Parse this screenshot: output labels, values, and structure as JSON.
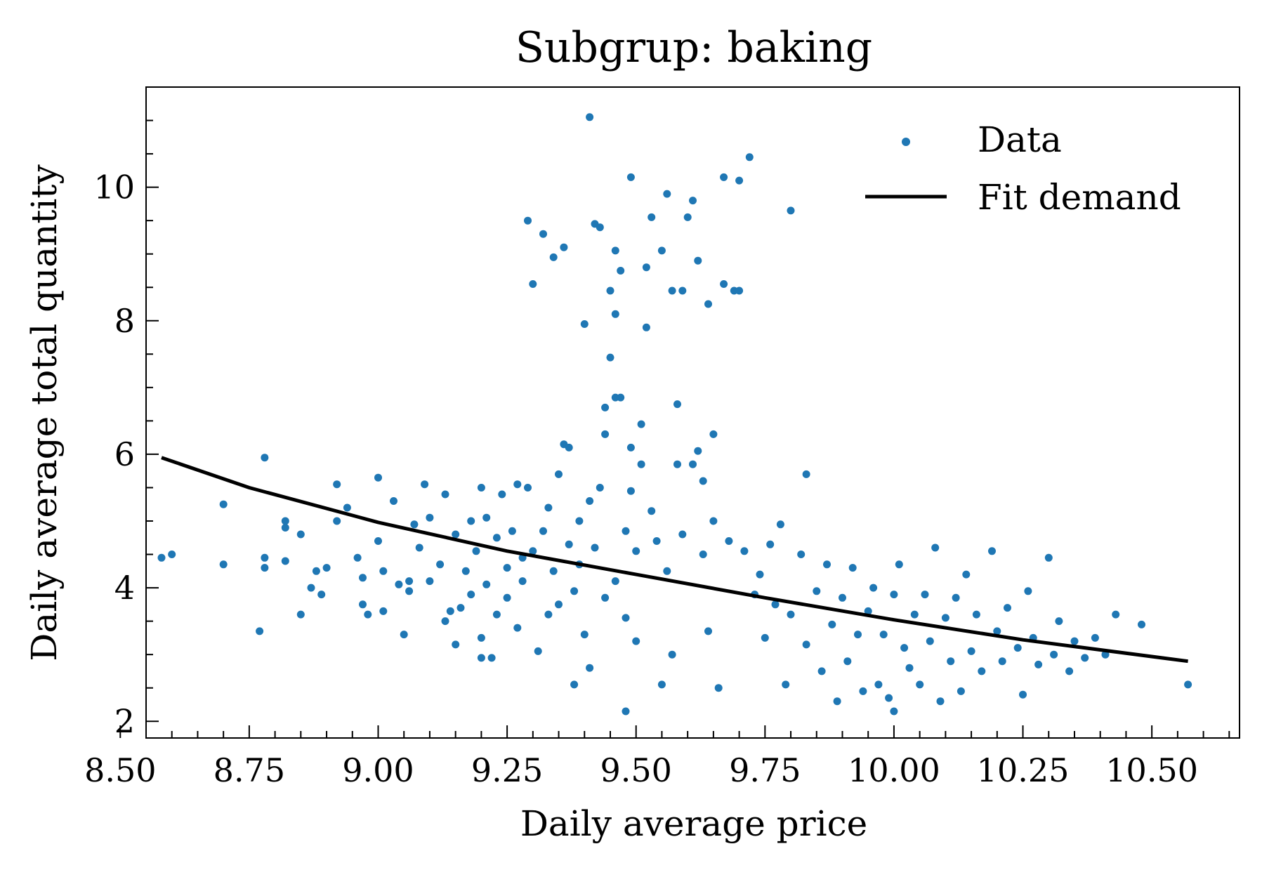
{
  "chart_data": {
    "type": "scatter",
    "title": "Subgrup: baking",
    "xlabel": "Daily average price",
    "ylabel": "Daily average total quantity",
    "xlim": [
      8.55,
      10.67
    ],
    "ylim": [
      1.75,
      11.5
    ],
    "x_ticks": [
      8.5,
      8.75,
      9.0,
      9.25,
      9.5,
      9.75,
      10.0,
      10.25,
      10.5
    ],
    "x_tick_labels": [
      "8.50",
      "8.75",
      "9.00",
      "9.25",
      "9.50",
      "9.75",
      "10.00",
      "10.25",
      "10.50"
    ],
    "y_ticks": [
      2,
      4,
      6,
      8,
      10
    ],
    "y_tick_labels": [
      "2",
      "4",
      "6",
      "8",
      "10"
    ],
    "grid": false,
    "legend_position": "top-right",
    "colors": {
      "data": "#1f77b4",
      "fit": "#000000"
    },
    "series": [
      {
        "name": "Data",
        "kind": "scatter",
        "points": [
          [
            8.58,
            4.45
          ],
          [
            8.6,
            4.5
          ],
          [
            8.7,
            5.25
          ],
          [
            8.7,
            4.35
          ],
          [
            8.77,
            3.35
          ],
          [
            8.78,
            5.95
          ],
          [
            8.78,
            4.45
          ],
          [
            8.78,
            4.3
          ],
          [
            8.82,
            5.0
          ],
          [
            8.82,
            4.9
          ],
          [
            8.82,
            4.4
          ],
          [
            8.85,
            3.6
          ],
          [
            8.85,
            4.8
          ],
          [
            8.87,
            4.0
          ],
          [
            8.88,
            4.25
          ],
          [
            8.89,
            3.9
          ],
          [
            8.9,
            4.3
          ],
          [
            8.92,
            5.55
          ],
          [
            8.92,
            5.0
          ],
          [
            8.94,
            5.2
          ],
          [
            8.96,
            4.45
          ],
          [
            8.97,
            4.15
          ],
          [
            8.97,
            3.75
          ],
          [
            8.98,
            3.6
          ],
          [
            9.0,
            5.65
          ],
          [
            9.0,
            4.7
          ],
          [
            9.01,
            4.25
          ],
          [
            9.01,
            3.65
          ],
          [
            9.03,
            5.3
          ],
          [
            9.04,
            4.05
          ],
          [
            9.05,
            3.3
          ],
          [
            9.06,
            4.1
          ],
          [
            9.06,
            3.95
          ],
          [
            9.07,
            4.95
          ],
          [
            9.08,
            4.6
          ],
          [
            9.09,
            5.55
          ],
          [
            9.1,
            4.1
          ],
          [
            9.1,
            5.05
          ],
          [
            9.12,
            4.35
          ],
          [
            9.13,
            3.5
          ],
          [
            9.13,
            5.4
          ],
          [
            9.14,
            3.65
          ],
          [
            9.15,
            4.8
          ],
          [
            9.15,
            3.15
          ],
          [
            9.16,
            3.7
          ],
          [
            9.17,
            4.25
          ],
          [
            9.18,
            5.0
          ],
          [
            9.18,
            3.9
          ],
          [
            9.19,
            4.55
          ],
          [
            9.2,
            5.5
          ],
          [
            9.2,
            3.25
          ],
          [
            9.2,
            2.95
          ],
          [
            9.21,
            4.05
          ],
          [
            9.21,
            5.05
          ],
          [
            9.22,
            2.95
          ],
          [
            9.23,
            4.75
          ],
          [
            9.23,
            3.6
          ],
          [
            9.24,
            5.4
          ],
          [
            9.25,
            4.3
          ],
          [
            9.25,
            3.85
          ],
          [
            9.26,
            4.85
          ],
          [
            9.27,
            5.55
          ],
          [
            9.27,
            3.4
          ],
          [
            9.28,
            4.45
          ],
          [
            9.28,
            4.1
          ],
          [
            9.29,
            9.5
          ],
          [
            9.29,
            5.5
          ],
          [
            9.3,
            4.55
          ],
          [
            9.3,
            8.55
          ],
          [
            9.31,
            3.05
          ],
          [
            9.32,
            9.3
          ],
          [
            9.32,
            4.85
          ],
          [
            9.33,
            3.6
          ],
          [
            9.33,
            5.2
          ],
          [
            9.34,
            8.95
          ],
          [
            9.34,
            4.25
          ],
          [
            9.35,
            3.75
          ],
          [
            9.35,
            5.7
          ],
          [
            9.36,
            9.1
          ],
          [
            9.36,
            6.15
          ],
          [
            9.37,
            6.1
          ],
          [
            9.37,
            4.65
          ],
          [
            9.38,
            3.95
          ],
          [
            9.38,
            2.55
          ],
          [
            9.39,
            5.0
          ],
          [
            9.39,
            4.35
          ],
          [
            9.4,
            7.95
          ],
          [
            9.4,
            3.3
          ],
          [
            9.41,
            5.3
          ],
          [
            9.41,
            11.05
          ],
          [
            9.41,
            2.8
          ],
          [
            9.42,
            9.45
          ],
          [
            9.42,
            4.6
          ],
          [
            9.43,
            5.5
          ],
          [
            9.43,
            9.4
          ],
          [
            9.44,
            6.7
          ],
          [
            9.44,
            6.3
          ],
          [
            9.44,
            3.85
          ],
          [
            9.45,
            8.45
          ],
          [
            9.45,
            7.45
          ],
          [
            9.46,
            9.05
          ],
          [
            9.46,
            8.1
          ],
          [
            9.46,
            6.85
          ],
          [
            9.46,
            4.1
          ],
          [
            9.47,
            6.85
          ],
          [
            9.47,
            8.75
          ],
          [
            9.48,
            3.55
          ],
          [
            9.48,
            4.85
          ],
          [
            9.48,
            2.15
          ],
          [
            9.49,
            10.15
          ],
          [
            9.49,
            6.1
          ],
          [
            9.49,
            5.45
          ],
          [
            9.5,
            4.55
          ],
          [
            9.5,
            3.2
          ],
          [
            9.51,
            6.45
          ],
          [
            9.51,
            5.85
          ],
          [
            9.52,
            8.8
          ],
          [
            9.52,
            7.9
          ],
          [
            9.53,
            9.55
          ],
          [
            9.53,
            5.15
          ],
          [
            9.54,
            4.7
          ],
          [
            9.55,
            9.05
          ],
          [
            9.55,
            2.55
          ],
          [
            9.56,
            9.9
          ],
          [
            9.56,
            4.25
          ],
          [
            9.57,
            8.45
          ],
          [
            9.57,
            3.0
          ],
          [
            9.58,
            6.75
          ],
          [
            9.58,
            5.85
          ],
          [
            9.59,
            8.45
          ],
          [
            9.59,
            4.8
          ],
          [
            9.6,
            9.55
          ],
          [
            9.61,
            5.85
          ],
          [
            9.61,
            9.8
          ],
          [
            9.62,
            8.9
          ],
          [
            9.62,
            6.05
          ],
          [
            9.63,
            5.6
          ],
          [
            9.63,
            4.5
          ],
          [
            9.64,
            8.25
          ],
          [
            9.64,
            3.35
          ],
          [
            9.65,
            6.3
          ],
          [
            9.65,
            5.0
          ],
          [
            9.66,
            2.5
          ],
          [
            9.67,
            10.15
          ],
          [
            9.67,
            8.55
          ],
          [
            9.68,
            4.7
          ],
          [
            9.69,
            8.45
          ],
          [
            9.7,
            10.1
          ],
          [
            9.7,
            8.45
          ],
          [
            9.71,
            4.55
          ],
          [
            9.72,
            10.45
          ],
          [
            9.73,
            3.9
          ],
          [
            9.74,
            4.2
          ],
          [
            9.75,
            3.25
          ],
          [
            9.76,
            4.65
          ],
          [
            9.77,
            3.75
          ],
          [
            9.78,
            4.95
          ],
          [
            9.79,
            2.55
          ],
          [
            9.8,
            9.65
          ],
          [
            9.8,
            3.6
          ],
          [
            9.82,
            4.5
          ],
          [
            9.83,
            5.7
          ],
          [
            9.83,
            3.15
          ],
          [
            9.85,
            3.95
          ],
          [
            9.86,
            2.75
          ],
          [
            9.87,
            4.35
          ],
          [
            9.88,
            3.45
          ],
          [
            9.89,
            2.3
          ],
          [
            9.9,
            3.85
          ],
          [
            9.91,
            2.9
          ],
          [
            9.92,
            4.3
          ],
          [
            9.93,
            3.3
          ],
          [
            9.94,
            2.45
          ],
          [
            9.95,
            3.65
          ],
          [
            9.96,
            4.0
          ],
          [
            9.97,
            2.55
          ],
          [
            9.98,
            3.3
          ],
          [
            9.99,
            2.35
          ],
          [
            10.0,
            3.9
          ],
          [
            10.0,
            2.15
          ],
          [
            10.01,
            4.35
          ],
          [
            10.02,
            3.1
          ],
          [
            10.03,
            2.8
          ],
          [
            10.04,
            3.6
          ],
          [
            10.05,
            2.55
          ],
          [
            10.06,
            3.9
          ],
          [
            10.07,
            3.2
          ],
          [
            10.08,
            4.6
          ],
          [
            10.09,
            2.3
          ],
          [
            10.1,
            3.55
          ],
          [
            10.11,
            2.9
          ],
          [
            10.12,
            3.85
          ],
          [
            10.13,
            2.45
          ],
          [
            10.14,
            4.2
          ],
          [
            10.15,
            3.05
          ],
          [
            10.16,
            3.6
          ],
          [
            10.17,
            2.75
          ],
          [
            10.19,
            4.55
          ],
          [
            10.2,
            3.35
          ],
          [
            10.21,
            2.9
          ],
          [
            10.22,
            3.7
          ],
          [
            10.24,
            3.1
          ],
          [
            10.25,
            2.4
          ],
          [
            10.26,
            3.95
          ],
          [
            10.27,
            3.25
          ],
          [
            10.28,
            2.85
          ],
          [
            10.3,
            4.45
          ],
          [
            10.31,
            3.0
          ],
          [
            10.32,
            3.5
          ],
          [
            10.34,
            2.75
          ],
          [
            10.35,
            3.2
          ],
          [
            10.37,
            2.95
          ],
          [
            10.39,
            3.25
          ],
          [
            10.41,
            3.0
          ],
          [
            10.43,
            3.6
          ],
          [
            10.48,
            3.45
          ],
          [
            10.57,
            2.55
          ]
        ]
      },
      {
        "name": "Fit demand",
        "kind": "line",
        "points": [
          [
            8.58,
            5.95
          ],
          [
            8.75,
            5.5
          ],
          [
            9.0,
            4.98
          ],
          [
            9.25,
            4.55
          ],
          [
            9.5,
            4.2
          ],
          [
            9.75,
            3.85
          ],
          [
            10.0,
            3.52
          ],
          [
            10.25,
            3.22
          ],
          [
            10.57,
            2.9
          ]
        ]
      }
    ]
  }
}
